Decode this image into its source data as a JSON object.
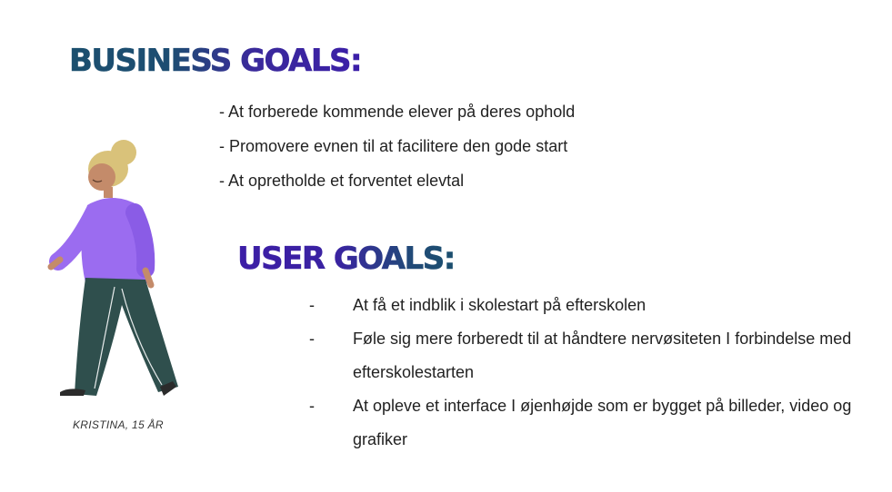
{
  "business": {
    "heading": "BUSINESS GOALS:",
    "items": [
      "- At forberede kommende elever på deres ophold",
      "- Promovere evnen til at facilitere den gode start",
      "- At opretholde et forventet elevtal"
    ]
  },
  "user": {
    "heading": "USER GOALS:",
    "items": [
      {
        "dash": "-",
        "text": "At få et indblik i skolestart på efterskolen"
      },
      {
        "dash": "-",
        "text": "Føle sig mere forberedt til at håndtere nervøsiteten I forbindelse med efterskolestarten"
      },
      {
        "dash": "-",
        "text": "At opleve et interface I øjenhøjde som er bygget på billeder, video og grafiker"
      }
    ]
  },
  "persona": {
    "caption": "KRISTINA, 15 ÅR",
    "illustration": "walking-girl-illustration"
  },
  "colors": {
    "heading_teal": "#1b4f6e",
    "heading_purple": "#3b1ea8",
    "sweater": "#9b6cf0",
    "pants": "#2f4f4d",
    "hair": "#d9c27a",
    "skin": "#c48b6a"
  }
}
